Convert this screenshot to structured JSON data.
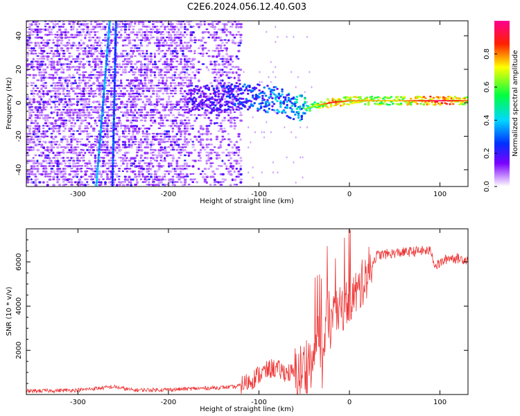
{
  "title": "C2E6.2024.056.12.40.G03",
  "chart_data": [
    {
      "type": "heatmap",
      "xlabel": "Height of straight line (km)",
      "ylabel": "Frequency (Hz)",
      "xlim": [
        -357,
        131
      ],
      "ylim": [
        -50,
        49
      ],
      "x_ticks": [
        -300,
        -200,
        -100,
        0,
        100
      ],
      "y_ticks": [
        -40,
        -20,
        0,
        20,
        40
      ],
      "colorbar": {
        "label": "Normalized spectral amplitude",
        "range": [
          0,
          1
        ],
        "ticks": [
          "0.0",
          "0.2",
          "0.4",
          "0.6",
          "0.8"
        ],
        "colormap": [
          "#ffffff",
          "#7a00ff",
          "#0044ff",
          "#00e0ff",
          "#00ff40",
          "#ffff00",
          "#ff0000",
          "#ff0080"
        ]
      },
      "features": {
        "noise_region_x": [
          -357,
          -130
        ],
        "signal_ridge": {
          "x": [
            -180,
            -140,
            -120,
            -100,
            -80,
            -60,
            -50,
            -40,
            -20,
            0,
            50,
            100,
            131
          ],
          "freq": [
            2,
            3,
            4,
            3,
            1,
            -3,
            -4,
            -2,
            0,
            1,
            1,
            1,
            1
          ],
          "amplitude": [
            0.2,
            0.25,
            0.3,
            0.35,
            0.4,
            0.45,
            0.5,
            0.6,
            0.8,
            0.7,
            0.65,
            0.85,
            0.7
          ]
        },
        "diagonal_traces": [
          {
            "x_bottom": -280,
            "x_top": -265
          },
          {
            "x_bottom": -262,
            "x_top": -258
          }
        ]
      }
    },
    {
      "type": "line",
      "xlabel": "Height of straight line (km)",
      "ylabel": "SNR (10 * v/v)",
      "xlim": [
        -357,
        131
      ],
      "ylim": [
        0,
        7500
      ],
      "x_ticks": [
        -300,
        -200,
        -100,
        0,
        100
      ],
      "y_ticks": [
        2000,
        4000,
        6000
      ],
      "color": "#ee3333",
      "series": [
        {
          "x": [
            -357,
            -300,
            -260,
            -240,
            -200,
            -150,
            -125,
            -110,
            -100,
            -85,
            -70,
            -55,
            -45,
            -38,
            -30,
            -25,
            -20,
            -10,
            0,
            10,
            20,
            30,
            50,
            80,
            90,
            95,
            110,
            131
          ],
          "values": [
            150,
            200,
            350,
            200,
            220,
            300,
            350,
            600,
            900,
            1200,
            1000,
            900,
            1500,
            1900,
            2600,
            3200,
            3400,
            3800,
            4300,
            4700,
            5500,
            6300,
            6400,
            6500,
            6500,
            5800,
            6200,
            6100
          ]
        }
      ]
    }
  ]
}
